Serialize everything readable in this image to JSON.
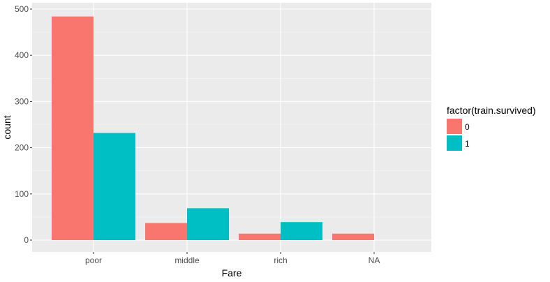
{
  "chart_data": {
    "type": "bar",
    "xlabel": "Fare",
    "ylabel": "count",
    "categories": [
      "poor",
      "middle",
      "rich",
      "NA"
    ],
    "series": [
      {
        "name": "0",
        "color": "#F8766D",
        "values": [
          484,
          37,
          14,
          14
        ]
      },
      {
        "name": "1",
        "color": "#00BFC4",
        "values": [
          232,
          69,
          39,
          0
        ]
      }
    ],
    "ylim": [
      0,
      500
    ],
    "yticks": [
      0,
      100,
      200,
      300,
      400,
      500
    ],
    "grid": true,
    "legend": {
      "title": "factor(train.survived)",
      "placement": "right"
    }
  }
}
